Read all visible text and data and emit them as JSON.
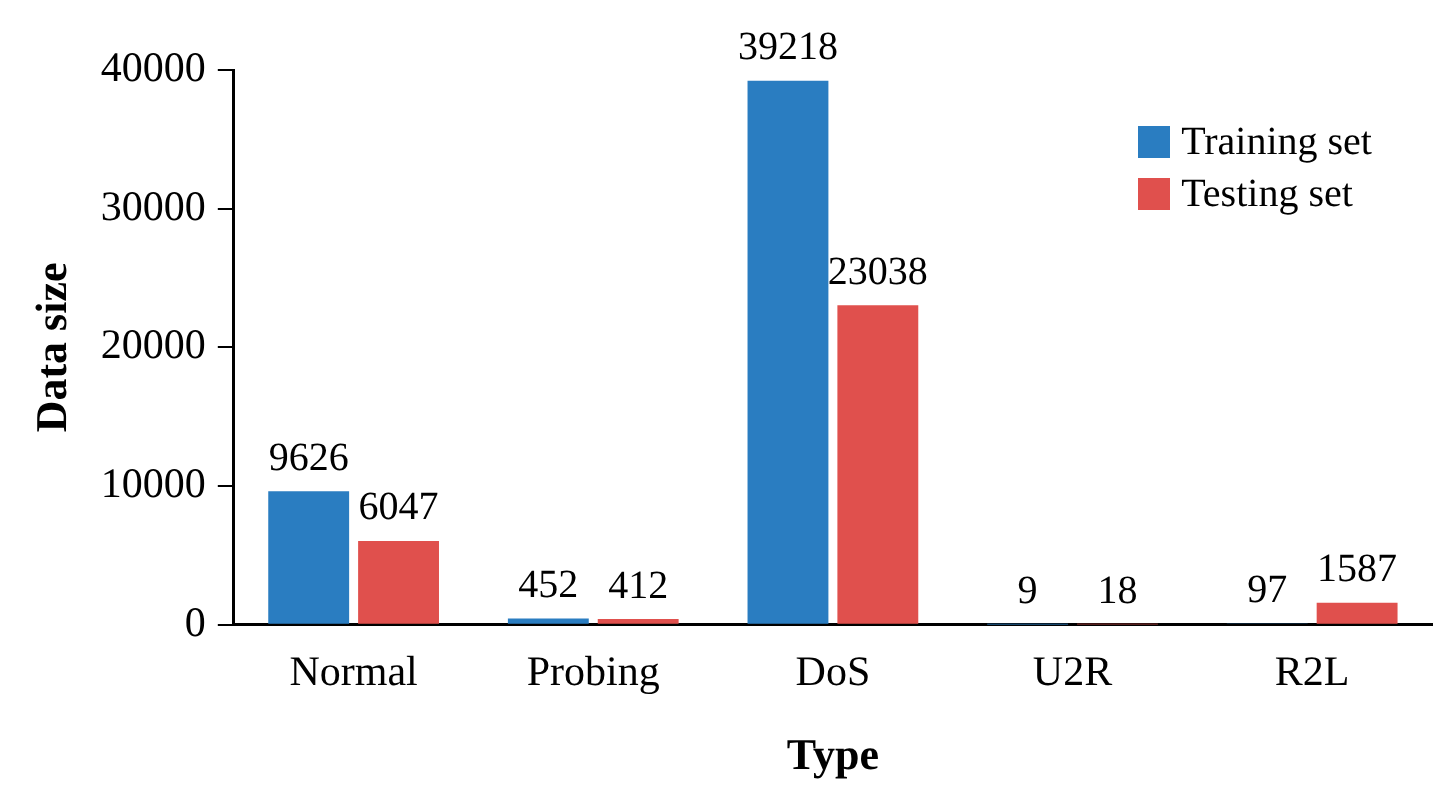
{
  "chart_data": {
    "type": "bar",
    "xlabel": "Type",
    "ylabel": "Data size",
    "categories": [
      "Normal",
      "Probing",
      "DoS",
      "U2R",
      "R2L"
    ],
    "series": [
      {
        "name": "Training set",
        "color": "#2a7dc1",
        "values": [
          9626,
          452,
          39218,
          9,
          97
        ]
      },
      {
        "name": "Testing set",
        "color": "#e0504d",
        "values": [
          6047,
          412,
          23038,
          18,
          1587
        ]
      }
    ],
    "ylim": [
      0,
      40000
    ],
    "yticks": [
      0,
      10000,
      20000,
      30000,
      40000
    ],
    "grid": false,
    "legend": "top right",
    "data_labels": true
  }
}
